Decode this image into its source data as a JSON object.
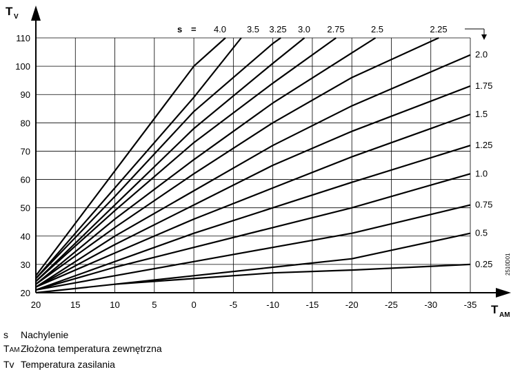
{
  "chart_data": {
    "type": "line",
    "title": "",
    "ylabel": "T",
    "ylabel_sub": "V",
    "xlabel": "T",
    "xlabel_sub": "AM",
    "xlim": [
      20,
      -35
    ],
    "ylim": [
      20,
      110
    ],
    "x_ticks": [
      20,
      15,
      10,
      5,
      0,
      -5,
      -10,
      -15,
      -20,
      -25,
      -30,
      -35
    ],
    "x_tick_labels": [
      "20",
      "15",
      "10",
      "5",
      "0",
      "-5",
      "-10",
      "-15",
      "-20",
      "-25",
      "-30",
      "-35"
    ],
    "y_ticks": [
      20,
      30,
      40,
      50,
      60,
      70,
      80,
      90,
      100,
      110
    ],
    "y_tick_labels": [
      "20",
      "30",
      "40",
      "50",
      "60",
      "70",
      "80",
      "90",
      "100",
      "110"
    ],
    "grid": true,
    "slope_prefix": "s",
    "slope_equals": "=",
    "series": [
      {
        "name": "4.0",
        "x": [
          20,
          10,
          0,
          -4
        ],
        "y": [
          26,
          63,
          100,
          110
        ]
      },
      {
        "name": "3.5",
        "x": [
          20,
          10,
          0,
          -6
        ],
        "y": [
          25,
          57,
          89,
          110
        ]
      },
      {
        "name": "3.25",
        "x": [
          20,
          10,
          0,
          -10,
          -11
        ],
        "y": [
          25,
          54,
          84,
          108,
          110
        ]
      },
      {
        "name": "3.0",
        "x": [
          20,
          10,
          0,
          -10,
          -14
        ],
        "y": [
          24,
          51,
          78,
          101,
          110
        ]
      },
      {
        "name": "2.75",
        "x": [
          20,
          10,
          0,
          -10,
          -18
        ],
        "y": [
          24,
          49,
          73,
          94,
          110
        ]
      },
      {
        "name": "2.5",
        "x": [
          20,
          10,
          0,
          -10,
          -23
        ],
        "y": [
          23,
          46,
          67,
          87,
          110
        ]
      },
      {
        "name": "2.25",
        "x": [
          20,
          10,
          0,
          -10,
          -20,
          -31
        ],
        "y": [
          23,
          43,
          62,
          80,
          96,
          110
        ]
      },
      {
        "name": "2.0",
        "x": [
          20,
          10,
          0,
          -10,
          -20,
          -35
        ],
        "y": [
          22,
          40,
          56,
          72,
          86,
          104
        ]
      },
      {
        "name": "1.75",
        "x": [
          20,
          10,
          0,
          -10,
          -20,
          -35
        ],
        "y": [
          22,
          37,
          51,
          65,
          77,
          93
        ]
      },
      {
        "name": "1.5",
        "x": [
          20,
          10,
          0,
          -10,
          -20,
          -35
        ],
        "y": [
          22,
          34,
          46,
          57,
          68,
          83
        ]
      },
      {
        "name": "1.25",
        "x": [
          20,
          10,
          0,
          -10,
          -20,
          -35
        ],
        "y": [
          21,
          31,
          41,
          50,
          59,
          72
        ]
      },
      {
        "name": "1.0",
        "x": [
          20,
          10,
          0,
          -10,
          -20,
          -35
        ],
        "y": [
          21,
          29,
          36,
          43,
          50,
          62
        ]
      },
      {
        "name": "0.75",
        "x": [
          20,
          10,
          0,
          -10,
          -20,
          -35
        ],
        "y": [
          21,
          26,
          31,
          36,
          41,
          51
        ]
      },
      {
        "name": "0.5",
        "x": [
          20,
          10,
          0,
          -10,
          -20,
          -35
        ],
        "y": [
          20,
          23,
          26,
          29,
          32,
          41
        ]
      },
      {
        "name": "0.25",
        "x": [
          10,
          0,
          -10,
          -20,
          -35
        ],
        "y": [
          23,
          25,
          27,
          28,
          30
        ]
      }
    ],
    "top_labels": [
      "4.0",
      "3.5",
      "3.25",
      "3.0",
      "2.75",
      "2.5",
      "2.25"
    ],
    "right_labels": [
      "2.0",
      "1.75",
      "1.5",
      "1.25",
      "1.0",
      "0.75",
      "0.5",
      "0.25"
    ],
    "figure_code": "2510D01"
  },
  "legend": [
    {
      "symbol": "s",
      "symbol_sub": "",
      "text": "Nachylenie"
    },
    {
      "symbol": "T",
      "symbol_sub": "AM",
      "text": "Złożona temperatura zewnętrzna"
    },
    {
      "symbol": "Tv",
      "symbol_sub": "",
      "text": "Temperatura zasilania"
    }
  ]
}
